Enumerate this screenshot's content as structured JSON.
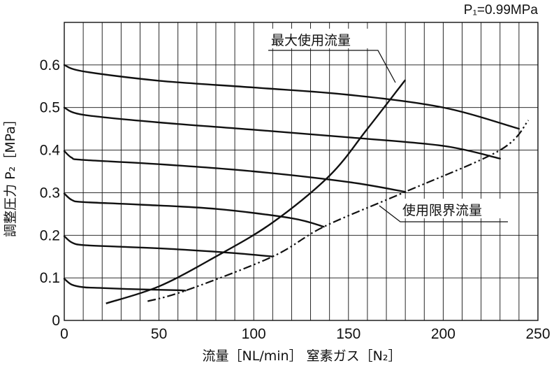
{
  "chart_data": {
    "type": "line",
    "condition": "P₁=0.99MPa",
    "xlabel": "流量［NL/min］ 窒素ガス［N₂］",
    "ylabel": "調整圧力 P₂［MPa］",
    "xlim": [
      0,
      250
    ],
    "ylim": [
      0,
      0.7
    ],
    "x_ticks": [
      0,
      50,
      100,
      150,
      200,
      250
    ],
    "y_ticks": [
      "0",
      "0.1",
      "0.2",
      "0.3",
      "0.4",
      "0.5",
      "0.6"
    ],
    "grid": true,
    "x_grid_step": 10,
    "y_grid_step": 0.1,
    "series": [
      {
        "x": [
          0,
          4,
          10,
          20,
          40,
          60,
          64
        ],
        "y": [
          0.098,
          0.084,
          0.078,
          0.076,
          0.073,
          0.071,
          0.07
        ]
      },
      {
        "x": [
          0,
          4,
          10,
          30,
          60,
          90,
          110
        ],
        "y": [
          0.198,
          0.183,
          0.177,
          0.173,
          0.167,
          0.158,
          0.15
        ]
      },
      {
        "x": [
          0,
          4,
          10,
          40,
          80,
          120,
          137
        ],
        "y": [
          0.298,
          0.283,
          0.278,
          0.272,
          0.262,
          0.24,
          0.22
        ]
      },
      {
        "x": [
          0,
          4,
          10,
          50,
          100,
          150,
          180
        ],
        "y": [
          0.398,
          0.382,
          0.377,
          0.367,
          0.35,
          0.325,
          0.302
        ]
      },
      {
        "x": [
          0,
          10,
          50,
          100,
          150,
          200,
          230
        ],
        "y": [
          0.5,
          0.483,
          0.465,
          0.448,
          0.43,
          0.41,
          0.38
        ]
      },
      {
        "x": [
          0,
          10,
          50,
          100,
          150,
          200,
          240
        ],
        "y": [
          0.6,
          0.585,
          0.563,
          0.547,
          0.53,
          0.5,
          0.45
        ]
      }
    ],
    "annotations": [
      {
        "text": "最大使用流量",
        "x": [
          22,
          50,
          80,
          110,
          140,
          160,
          180
        ],
        "y": [
          0.04,
          0.08,
          0.15,
          0.23,
          0.34,
          0.45,
          0.565
        ]
      },
      {
        "text": "使用限界流量",
        "x": [
          44,
          64,
          110,
          137,
          180,
          230,
          245
        ],
        "y": [
          0.045,
          0.07,
          0.15,
          0.22,
          0.302,
          0.4,
          0.47
        ]
      }
    ]
  }
}
